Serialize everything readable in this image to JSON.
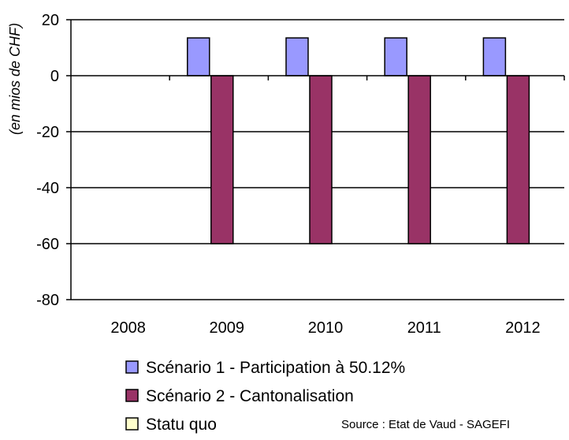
{
  "chart_data": {
    "type": "bar",
    "ylabel": "(en mios de CHF)",
    "ylim": [
      -80,
      20
    ],
    "yticks": [
      20,
      0,
      -20,
      -40,
      -60,
      -80
    ],
    "grid": "horizontal",
    "legend_placement": "bottom",
    "categories": [
      "2008",
      "2009",
      "2010",
      "2011",
      "2012"
    ],
    "series": [
      {
        "name": "Scénario 1 - Participation à 50.12%",
        "color": "#9999FF",
        "values": [
          0,
          13.5,
          13.5,
          13.5,
          13.5
        ]
      },
      {
        "name": "Scénario 2 - Cantonalisation",
        "color": "#993366",
        "values": [
          0,
          -60,
          -60,
          -60,
          -60
        ]
      },
      {
        "name": "Statu quo",
        "color": "#FFFFCC",
        "values": [
          0,
          0,
          0,
          0,
          0
        ]
      }
    ],
    "source": "Source : Etat de Vaud - SAGEFI"
  }
}
